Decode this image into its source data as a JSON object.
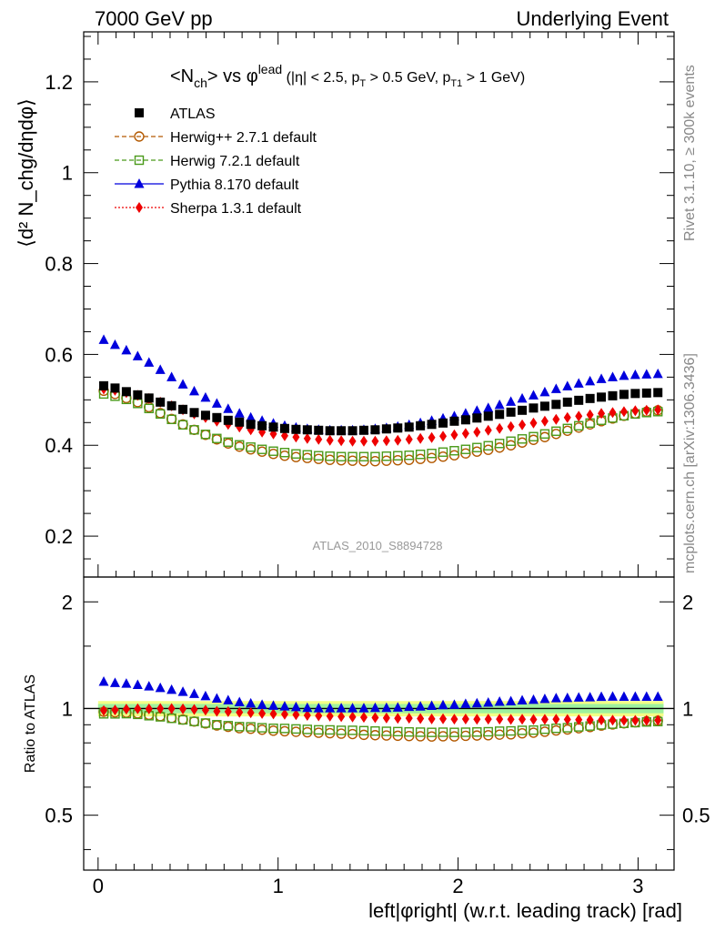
{
  "header": {
    "left": "7000 GeV pp",
    "right": "Underlying Event"
  },
  "side_labels": {
    "rivet": "Rivet 3.1.10, ≥ 300k events",
    "mcplots": "mcplots.cern.ch [arXiv:1306.3436]"
  },
  "watermark": "ATLAS_2010_S8894728",
  "plot_title": {
    "main_a": "<N",
    "main_sub": "ch",
    "main_b": "> vs ",
    "phi": "φ",
    "phi_sup": "lead",
    "cut_a": " (|η| < 2.5, p",
    "cut_sub1": "T",
    "cut_b": " > 0.5 GeV, p",
    "cut_sub2": "T1",
    "cut_c": " > 1 GeV)"
  },
  "axes": {
    "ylabel_main": "⟨d² N_chg/dηdφ⟩",
    "ylabel_ratio": "Ratio to ATLAS",
    "xlabel": "left|φright| (w.r.t. leading track) [rad]"
  },
  "legend": [
    {
      "label": "ATLAS",
      "color": "#000000",
      "marker": "square-filled",
      "line": "none"
    },
    {
      "label": "Herwig++ 2.7.1 default",
      "color": "#b35900",
      "marker": "circle-open",
      "line": "dashed"
    },
    {
      "label": "Herwig 7.2.1 default",
      "color": "#4a9a1a",
      "marker": "square-open",
      "line": "dashed"
    },
    {
      "label": "Pythia 8.170 default",
      "color": "#0000dd",
      "marker": "triangle-filled",
      "line": "solid"
    },
    {
      "label": "Sherpa 1.3.1 default",
      "color": "#ee0000",
      "marker": "diamond-filled",
      "line": "dotted"
    }
  ],
  "chart_data": {
    "type": "scatter",
    "x": [
      0.0314,
      0.0942,
      0.157,
      0.2199,
      0.2827,
      0.3456,
      0.4084,
      0.4712,
      0.5341,
      0.5969,
      0.6597,
      0.7226,
      0.7854,
      0.8482,
      0.9111,
      0.9739,
      1.0367,
      1.0996,
      1.1624,
      1.2252,
      1.2881,
      1.3509,
      1.4137,
      1.4765,
      1.5394,
      1.6022,
      1.665,
      1.7279,
      1.7907,
      1.8535,
      1.9164,
      1.9792,
      2.042,
      2.1049,
      2.1677,
      2.2305,
      2.2934,
      2.3562,
      2.419,
      2.4819,
      2.5447,
      2.6075,
      2.6704,
      2.7332,
      2.796,
      2.8588,
      2.9217,
      2.9845,
      3.0473,
      3.1102
    ],
    "xlim": [
      -0.08,
      3.2
    ],
    "ylim": [
      0.11,
      1.31
    ],
    "ratio_ylim": [
      0.35,
      2.35
    ],
    "ratio_log": true,
    "xticks": [
      "0",
      "1",
      "2",
      "3"
    ],
    "yticks_main": [
      "0.2",
      "0.4",
      "0.6",
      "0.8",
      "1",
      "1.2"
    ],
    "yticks_ratio": [
      "0.5",
      "1",
      "2"
    ],
    "band_rel": 0.05,
    "band_inner_rel": 0.03,
    "series": [
      {
        "name": "ATLAS",
        "values": [
          0.531,
          0.526,
          0.518,
          0.511,
          0.504,
          0.495,
          0.487,
          0.479,
          0.472,
          0.466,
          0.461,
          0.455,
          0.451,
          0.446,
          0.443,
          0.44,
          0.437,
          0.435,
          0.434,
          0.433,
          0.432,
          0.432,
          0.432,
          0.433,
          0.434,
          0.436,
          0.438,
          0.44,
          0.443,
          0.446,
          0.449,
          0.453,
          0.456,
          0.46,
          0.464,
          0.468,
          0.473,
          0.477,
          0.482,
          0.486,
          0.49,
          0.495,
          0.499,
          0.503,
          0.506,
          0.509,
          0.512,
          0.514,
          0.515,
          0.516
        ]
      },
      {
        "name": "Herwig++ 2.7.1 default",
        "values": [
          0.52,
          0.513,
          0.504,
          0.495,
          0.484,
          0.471,
          0.458,
          0.446,
          0.434,
          0.423,
          0.413,
          0.404,
          0.397,
          0.391,
          0.386,
          0.381,
          0.377,
          0.374,
          0.372,
          0.37,
          0.368,
          0.367,
          0.366,
          0.365,
          0.365,
          0.366,
          0.367,
          0.368,
          0.37,
          0.372,
          0.375,
          0.378,
          0.382,
          0.386,
          0.39,
          0.395,
          0.4,
          0.406,
          0.412,
          0.418,
          0.425,
          0.432,
          0.439,
          0.446,
          0.453,
          0.459,
          0.465,
          0.47,
          0.474,
          0.477
        ]
      },
      {
        "name": "Herwig 7.2.1 default",
        "values": [
          0.513,
          0.508,
          0.501,
          0.492,
          0.481,
          0.469,
          0.457,
          0.445,
          0.434,
          0.424,
          0.415,
          0.407,
          0.401,
          0.396,
          0.391,
          0.387,
          0.384,
          0.381,
          0.379,
          0.377,
          0.376,
          0.375,
          0.375,
          0.375,
          0.375,
          0.376,
          0.377,
          0.378,
          0.38,
          0.382,
          0.385,
          0.388,
          0.391,
          0.395,
          0.399,
          0.404,
          0.409,
          0.414,
          0.419,
          0.425,
          0.431,
          0.437,
          0.443,
          0.449,
          0.455,
          0.46,
          0.465,
          0.469,
          0.472,
          0.474
        ]
      },
      {
        "name": "Pythia 8.170 default",
        "values": [
          0.632,
          0.621,
          0.609,
          0.596,
          0.582,
          0.566,
          0.55,
          0.534,
          0.519,
          0.505,
          0.492,
          0.48,
          0.47,
          0.461,
          0.454,
          0.448,
          0.443,
          0.439,
          0.436,
          0.434,
          0.433,
          0.433,
          0.433,
          0.434,
          0.436,
          0.438,
          0.441,
          0.445,
          0.449,
          0.454,
          0.459,
          0.464,
          0.47,
          0.476,
          0.482,
          0.489,
          0.496,
          0.503,
          0.51,
          0.517,
          0.524,
          0.53,
          0.536,
          0.541,
          0.546,
          0.55,
          0.553,
          0.555,
          0.556,
          0.557
        ]
      },
      {
        "name": "Sherpa 1.3.1 default",
        "values": [
          0.524,
          0.521,
          0.516,
          0.51,
          0.503,
          0.495,
          0.487,
          0.478,
          0.469,
          0.461,
          0.453,
          0.446,
          0.44,
          0.434,
          0.429,
          0.425,
          0.421,
          0.418,
          0.415,
          0.413,
          0.411,
          0.41,
          0.409,
          0.409,
          0.409,
          0.41,
          0.411,
          0.413,
          0.415,
          0.417,
          0.42,
          0.423,
          0.426,
          0.429,
          0.433,
          0.437,
          0.441,
          0.445,
          0.449,
          0.453,
          0.457,
          0.461,
          0.464,
          0.467,
          0.47,
          0.472,
          0.474,
          0.476,
          0.477,
          0.478
        ]
      }
    ]
  }
}
